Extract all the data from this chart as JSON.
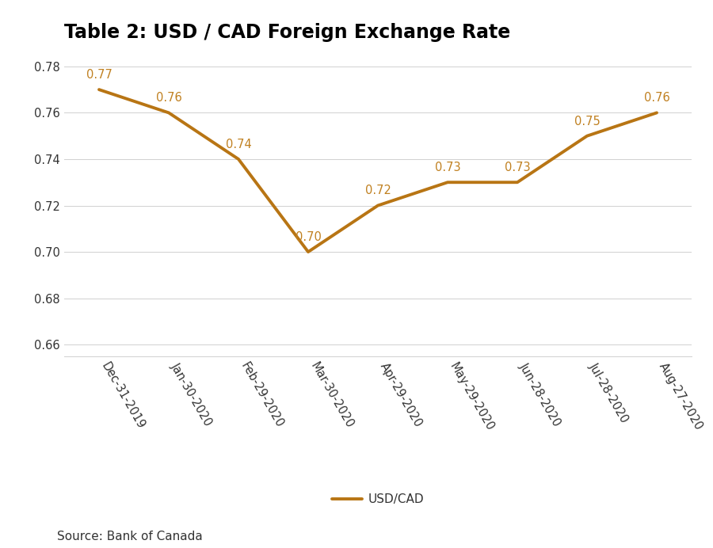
{
  "title": "Table 2: USD / CAD Foreign Exchange Rate",
  "x_labels": [
    "Dec-31-2019",
    "Jan-30-2020",
    "Feb-29-2020",
    "Mar-30-2020",
    "Apr-29-2020",
    "May-29-2020",
    "Jun-28-2020",
    "Jul-28-2020",
    "Aug-27-2020"
  ],
  "y_values": [
    0.77,
    0.76,
    0.74,
    0.7,
    0.72,
    0.73,
    0.73,
    0.75,
    0.76
  ],
  "y_labels": [
    "0.66",
    "0.68",
    "0.70",
    "0.72",
    "0.74",
    "0.76",
    "0.78"
  ],
  "ylim": [
    0.655,
    0.785
  ],
  "line_color": "#b87514",
  "label_color": "#c08020",
  "line_label": "USD/CAD",
  "source_text": "Source: Bank of Canada",
  "title_fontsize": 17,
  "axis_fontsize": 10.5,
  "label_fontsize": 10.5,
  "source_fontsize": 11,
  "legend_fontsize": 11,
  "background_color": "#ffffff",
  "grid_color": "#d0d0d0"
}
